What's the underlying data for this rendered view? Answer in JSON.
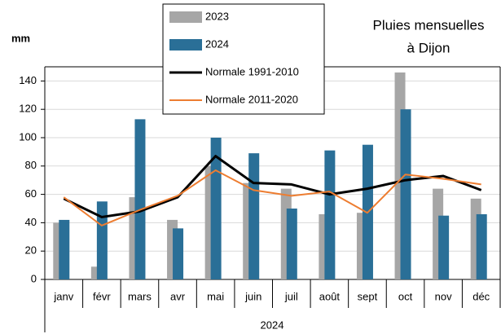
{
  "chart_data": {
    "type": "bar",
    "title": [
      "Pluies mensuelles",
      "à Dijon"
    ],
    "y_label": "mm",
    "x_label": "2024",
    "categories": [
      "janv",
      "févr",
      "mars",
      "avr",
      "mai",
      "juin",
      "juil",
      "août",
      "sept",
      "oct",
      "nov",
      "déc"
    ],
    "series": [
      {
        "name": "2023",
        "type": "bar",
        "color": "#a6a6a6",
        "values": [
          40,
          9,
          58,
          42,
          80,
          68,
          64,
          46,
          47,
          146,
          64,
          57
        ]
      },
      {
        "name": "2024",
        "type": "bar",
        "color": "#2a6f97",
        "values": [
          42,
          55,
          113,
          36,
          100,
          89,
          50,
          91,
          95,
          120,
          45,
          46
        ]
      },
      {
        "name": "Normale 1991-2010",
        "type": "line",
        "color": "#000000",
        "values": [
          57,
          44,
          48,
          58,
          87,
          68,
          67,
          60,
          64,
          70,
          73,
          63
        ]
      },
      {
        "name": "Normale 2011-2020",
        "type": "line",
        "color": "#ed7d31",
        "values": [
          58,
          38,
          49,
          59,
          77,
          63,
          59,
          62,
          47,
          74,
          71,
          67
        ]
      }
    ],
    "ylim": [
      0,
      150
    ],
    "yticks": [
      0,
      20,
      40,
      60,
      80,
      100,
      120,
      140
    ],
    "grid": true
  }
}
